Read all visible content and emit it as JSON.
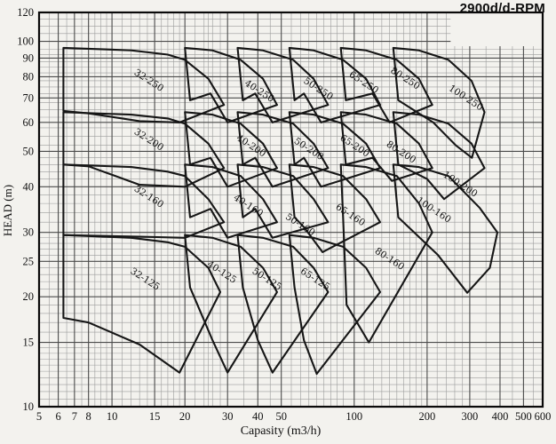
{
  "title": "2900d/d-RPM",
  "chart_data": {
    "type": "line",
    "title": "2900d/d-RPM",
    "xlabel": "Capasity (m3/h)",
    "ylabel": "HEAD (m)",
    "x_scale": "log",
    "y_scale": "log",
    "xlim": [
      5,
      600
    ],
    "ylim": [
      10,
      120
    ],
    "grid": "on",
    "label_angle_deg": 33,
    "colors": {
      "paper": "#f3f2ee",
      "grid_minor": "#9b9b9b",
      "grid_major": "#4a4a4a",
      "envelope_line": "#161616",
      "text": "#111111",
      "border": "#0a0a0a"
    },
    "x_ticks": [
      5,
      6,
      7,
      8,
      10,
      15,
      20,
      30,
      40,
      50,
      100,
      200,
      300,
      400,
      500,
      600
    ],
    "y_ticks": [
      10,
      15,
      20,
      25,
      30,
      40,
      50,
      60,
      70,
      80,
      90,
      100,
      120
    ],
    "x_grid_minor": [
      5.5,
      6.5,
      7.5,
      8.5,
      9,
      9.5,
      11,
      12,
      13,
      14,
      16,
      17,
      18,
      19,
      22,
      24,
      25,
      26,
      28,
      35,
      45,
      55,
      60,
      65,
      70,
      75,
      80,
      85,
      90,
      110,
      120,
      130,
      140,
      150,
      160,
      170,
      180,
      190,
      220,
      240,
      260,
      280,
      350,
      450,
      550
    ],
    "y_grid_minor": [
      10.5,
      11,
      11.5,
      12,
      12.5,
      13,
      13.5,
      14,
      14.5,
      16,
      17,
      18,
      19,
      21,
      22,
      23,
      24,
      26,
      27,
      28,
      29,
      32,
      34,
      36,
      38,
      42,
      44,
      46,
      48,
      52,
      55,
      58,
      62,
      65,
      68,
      72,
      75,
      78,
      82,
      85,
      88,
      92,
      95,
      105,
      110,
      115
    ],
    "blank_region": {
      "x": [
        250,
        600
      ],
      "y": [
        97,
        120
      ]
    },
    "series": [
      {
        "name": "32-250",
        "label_at": [
          14,
          77
        ],
        "points": [
          [
            6.3,
            96
          ],
          [
            12,
            94.5
          ],
          [
            17,
            92
          ],
          [
            20,
            89
          ],
          [
            25,
            79
          ],
          [
            29,
            67
          ],
          [
            19,
            60
          ],
          [
            13,
            60.5
          ],
          [
            8,
            63.5
          ],
          [
            6.3,
            64.5
          ]
        ]
      },
      {
        "name": "40-250",
        "label_at": [
          40,
          72
        ],
        "points": [
          [
            20,
            96
          ],
          [
            26,
            94.5
          ],
          [
            34,
            89
          ],
          [
            42,
            79
          ],
          [
            48,
            67
          ],
          [
            30,
            60
          ],
          [
            25.5,
            72
          ],
          [
            21,
            69
          ]
        ]
      },
      {
        "name": "50-250",
        "label_at": [
          70,
          73
        ],
        "points": [
          [
            33,
            96
          ],
          [
            42,
            94.5
          ],
          [
            56,
            89
          ],
          [
            68,
            79
          ],
          [
            78,
            67
          ],
          [
            46,
            60
          ],
          [
            39,
            72
          ],
          [
            34.7,
            69
          ]
        ]
      },
      {
        "name": "65-250",
        "label_at": [
          108,
          76
        ],
        "points": [
          [
            54,
            96
          ],
          [
            68,
            94.5
          ],
          [
            90,
            89
          ],
          [
            112,
            79
          ],
          [
            128,
            67
          ],
          [
            73,
            60
          ],
          [
            62,
            72
          ],
          [
            56.7,
            69
          ]
        ]
      },
      {
        "name": "80-250",
        "label_at": [
          160,
          78
        ],
        "points": [
          [
            88,
            96
          ],
          [
            112,
            94.5
          ],
          [
            150,
            89
          ],
          [
            185,
            79
          ],
          [
            210,
            67
          ],
          [
            140,
            60
          ],
          [
            119,
            72
          ],
          [
            92.4,
            69
          ]
        ]
      },
      {
        "name": "100-250",
        "label_at": [
          285,
          69
        ],
        "points": [
          [
            145,
            96
          ],
          [
            185,
            94.5
          ],
          [
            245,
            89
          ],
          [
            305,
            78
          ],
          [
            345,
            64
          ],
          [
            306,
            48
          ],
          [
            262,
            52
          ],
          [
            212,
            60
          ],
          [
            152,
            69
          ]
        ]
      },
      {
        "name": "32-200",
        "label_at": [
          14,
          53
        ],
        "points": [
          [
            6.3,
            64
          ],
          [
            12,
            63
          ],
          [
            17,
            61.5
          ],
          [
            20,
            59.5
          ],
          [
            25,
            52.5
          ],
          [
            29,
            45
          ],
          [
            20,
            40
          ],
          [
            13,
            40.5
          ],
          [
            8,
            45.5
          ],
          [
            6.3,
            46
          ]
        ]
      },
      {
        "name": "40-200",
        "label_at": [
          37,
          51
        ],
        "points": [
          [
            20,
            64
          ],
          [
            26,
            63
          ],
          [
            34,
            59.5
          ],
          [
            42,
            52.5
          ],
          [
            48,
            45
          ],
          [
            30,
            40
          ],
          [
            25.5,
            48
          ],
          [
            21,
            46
          ]
        ]
      },
      {
        "name": "50-200",
        "label_at": [
          64,
          50
        ],
        "points": [
          [
            33,
            64
          ],
          [
            42,
            63
          ],
          [
            56,
            59.5
          ],
          [
            68,
            52.5
          ],
          [
            78,
            45
          ],
          [
            46,
            40
          ],
          [
            39,
            48
          ],
          [
            34.7,
            46
          ]
        ]
      },
      {
        "name": "65-200",
        "label_at": [
          99,
          51
        ],
        "points": [
          [
            54,
            64
          ],
          [
            68,
            63
          ],
          [
            90,
            59.5
          ],
          [
            112,
            52.5
          ],
          [
            128,
            45
          ],
          [
            73,
            40
          ],
          [
            62,
            48
          ],
          [
            56.7,
            46
          ]
        ]
      },
      {
        "name": "80-200",
        "label_at": [
          154,
          49
        ],
        "points": [
          [
            88,
            64
          ],
          [
            112,
            63
          ],
          [
            150,
            59.5
          ],
          [
            185,
            52.5
          ],
          [
            210,
            45
          ],
          [
            143,
            41.5
          ],
          [
            119,
            48
          ],
          [
            92.4,
            46
          ]
        ]
      },
      {
        "name": "100-200",
        "label_at": [
          270,
          40
        ],
        "points": [
          [
            145,
            64
          ],
          [
            185,
            63
          ],
          [
            245,
            59.5
          ],
          [
            305,
            52.5
          ],
          [
            345,
            45
          ],
          [
            235,
            37
          ],
          [
            200,
            42
          ],
          [
            152,
            46
          ]
        ]
      },
      {
        "name": "32-160",
        "label_at": [
          14,
          37
        ],
        "points": [
          [
            6.3,
            46
          ],
          [
            12,
            45.3
          ],
          [
            17,
            44
          ],
          [
            20,
            42.8
          ],
          [
            25,
            37
          ],
          [
            29,
            32
          ],
          [
            20,
            29
          ],
          [
            13,
            29.2
          ],
          [
            8,
            29.4
          ],
          [
            6.3,
            29.5
          ]
        ]
      },
      {
        "name": "40-160",
        "label_at": [
          36,
          35
        ],
        "points": [
          [
            20,
            46
          ],
          [
            26,
            45.3
          ],
          [
            34,
            42.8
          ],
          [
            42,
            37
          ],
          [
            48,
            32
          ],
          [
            30,
            29
          ],
          [
            25.5,
            34.8
          ],
          [
            21,
            33
          ]
        ]
      },
      {
        "name": "50-160",
        "label_at": [
          59,
          31
        ],
        "points": [
          [
            33,
            46
          ],
          [
            42,
            45.3
          ],
          [
            56,
            42.8
          ],
          [
            68,
            37
          ],
          [
            78,
            32
          ],
          [
            46,
            29
          ],
          [
            39,
            34.8
          ],
          [
            34.7,
            33
          ]
        ]
      },
      {
        "name": "65-160",
        "label_at": [
          95,
          33
        ],
        "points": [
          [
            54,
            46
          ],
          [
            68,
            45.3
          ],
          [
            90,
            42.8
          ],
          [
            112,
            37
          ],
          [
            128,
            32
          ],
          [
            74,
            26.5
          ],
          [
            62,
            31
          ],
          [
            56.7,
            33
          ]
        ]
      },
      {
        "name": "80-160",
        "label_at": [
          138,
          25
        ],
        "points": [
          [
            88,
            46
          ],
          [
            112,
            45.3
          ],
          [
            150,
            42.8
          ],
          [
            185,
            36
          ],
          [
            210,
            30
          ],
          [
            115,
            15
          ],
          [
            93,
            19
          ],
          [
            90,
            33
          ]
        ]
      },
      {
        "name": "100-160",
        "label_at": [
          210,
          34
        ],
        "points": [
          [
            145,
            46
          ],
          [
            185,
            45.3
          ],
          [
            245,
            42.8
          ],
          [
            330,
            35
          ],
          [
            390,
            30
          ],
          [
            363,
            24
          ],
          [
            293,
            20.5
          ],
          [
            222,
            26
          ],
          [
            152,
            33
          ]
        ]
      },
      {
        "name": "32-125",
        "label_at": [
          13.5,
          22
        ],
        "points": [
          [
            6.3,
            29.5
          ],
          [
            12,
            29
          ],
          [
            17,
            28.2
          ],
          [
            20,
            27.4
          ],
          [
            25,
            24
          ],
          [
            28,
            20.6
          ],
          [
            19,
            12.4
          ],
          [
            13,
            14.8
          ],
          [
            8,
            17
          ],
          [
            6.3,
            17.5
          ]
        ]
      },
      {
        "name": "40-125",
        "label_at": [
          28,
          23
        ],
        "points": [
          [
            20,
            29.5
          ],
          [
            26,
            29
          ],
          [
            34,
            27.4
          ],
          [
            42,
            24
          ],
          [
            48,
            20.6
          ],
          [
            30,
            12.4
          ],
          [
            26,
            15.2
          ],
          [
            21,
            21.2
          ]
        ]
      },
      {
        "name": "50-125",
        "label_at": [
          43,
          22
        ],
        "points": [
          [
            33,
            29.5
          ],
          [
            42,
            29
          ],
          [
            56,
            27.4
          ],
          [
            68,
            24
          ],
          [
            78,
            20.6
          ],
          [
            46,
            12.4
          ],
          [
            40,
            15.2
          ],
          [
            34.7,
            21.2
          ]
        ]
      },
      {
        "name": "65-125",
        "label_at": [
          68,
          22
        ],
        "points": [
          [
            54,
            29.5
          ],
          [
            68,
            29
          ],
          [
            90,
            27.4
          ],
          [
            112,
            24
          ],
          [
            128,
            20.6
          ],
          [
            70,
            12.3
          ],
          [
            62,
            15.2
          ],
          [
            56.7,
            21.2
          ]
        ]
      }
    ]
  }
}
